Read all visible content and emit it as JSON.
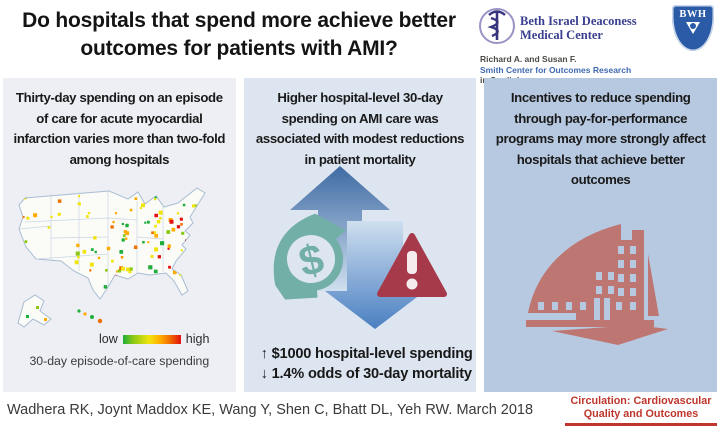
{
  "title": "Do hospitals that spend more achieve better outcomes for patients with AMI?",
  "logos": {
    "bidmc": {
      "line1": "Beth Israel Deaconess",
      "line2": "Medical Center",
      "sub1": "Richard A. and Susan F.",
      "sub2": "Smith Center for Outcomes Research",
      "sub3": "in Cardiology"
    },
    "bwh": {
      "label": "BWH"
    }
  },
  "columns": [
    {
      "heading": "Thirty-day spending on an episode of care for acute myocardial infarction varies more than two-fold among hospitals",
      "map": {
        "legend_low": "low",
        "legend_high": "high",
        "caption": "30-day episode-of-care spending",
        "palette": [
          "#1fae3a",
          "#8cc916",
          "#f2e40e",
          "#ffaa00",
          "#f07000",
          "#e3110f"
        ]
      }
    },
    {
      "heading": "Higher hospital-level 30-day spending on AMI care was associated with modest reductions in patient mortality",
      "stats": [
        "↑ $1000 hospital-level spending",
        "↓ 1.4% odds of 30-day mortality"
      ]
    },
    {
      "heading": "Incentives to reduce spending through pay-for-performance programs may more strongly affect hospitals that achieve better outcomes"
    }
  ],
  "footer": {
    "citation": "Wadhera RK, Joynt Maddox KE, Wang Y, Shen C, Bhatt DL, Yeh RW. March 2018",
    "journal_line1": "Circulation: Cardiovascular",
    "journal_line2": "Quality and Outcomes"
  },
  "colors": {
    "col_left_bg": "#edeff4",
    "col_mid_bg": "#dde5f0",
    "col_right_bg": "#b7c9e1",
    "arrow_dark": "#3f6ba3",
    "arrow_light": "#cfdfef",
    "arrow_dark2": "#4a7fc1",
    "teal": "#72afa7",
    "alert_red": "#a63a4a",
    "hospital_rose": "#bd7672",
    "journal_red": "#bf362c",
    "bwh_blue": "#2b5aa6",
    "smith_blue": "#3f6ab0",
    "land": "#fbfbf8",
    "land_border": "#a9bdd2",
    "state_line": "#c9d6e4"
  }
}
